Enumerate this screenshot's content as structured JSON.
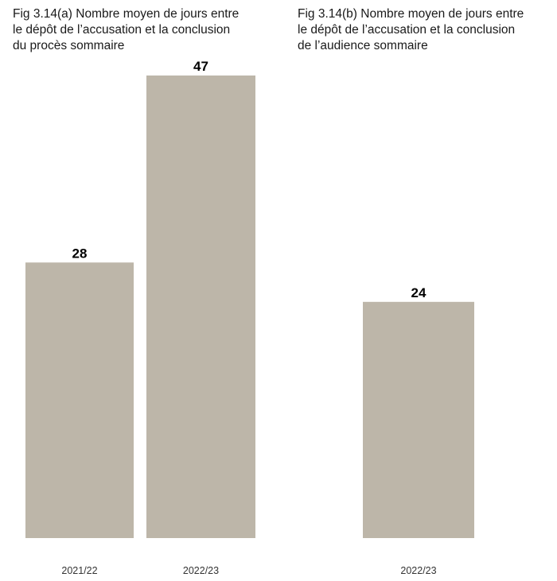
{
  "chart_data": [
    {
      "type": "bar",
      "title_lines": [
        "Fig 3.14(a) Nombre moyen de jours entre",
        "le dépôt de l’accusation et la conclusion",
        "du procès sommaire"
      ],
      "categories": [
        "2021/22",
        "2022/23"
      ],
      "values": [
        28,
        47
      ],
      "value_labels": [
        "28",
        "47"
      ],
      "xlabel": "",
      "ylabel": "",
      "ylim": [
        0,
        47
      ],
      "grid": false,
      "color": "#bdb6a9"
    },
    {
      "type": "bar",
      "title_lines": [
        "Fig 3.14(b) Nombre moyen de jours entre",
        "le dépôt de l’accusation et la conclusion",
        "de l’audience sommaire"
      ],
      "categories": [
        "2022/23"
      ],
      "values": [
        24
      ],
      "value_labels": [
        "24"
      ],
      "xlabel": "",
      "ylabel": "",
      "ylim": [
        0,
        47
      ],
      "grid": false,
      "color": "#bdb6a9"
    }
  ]
}
